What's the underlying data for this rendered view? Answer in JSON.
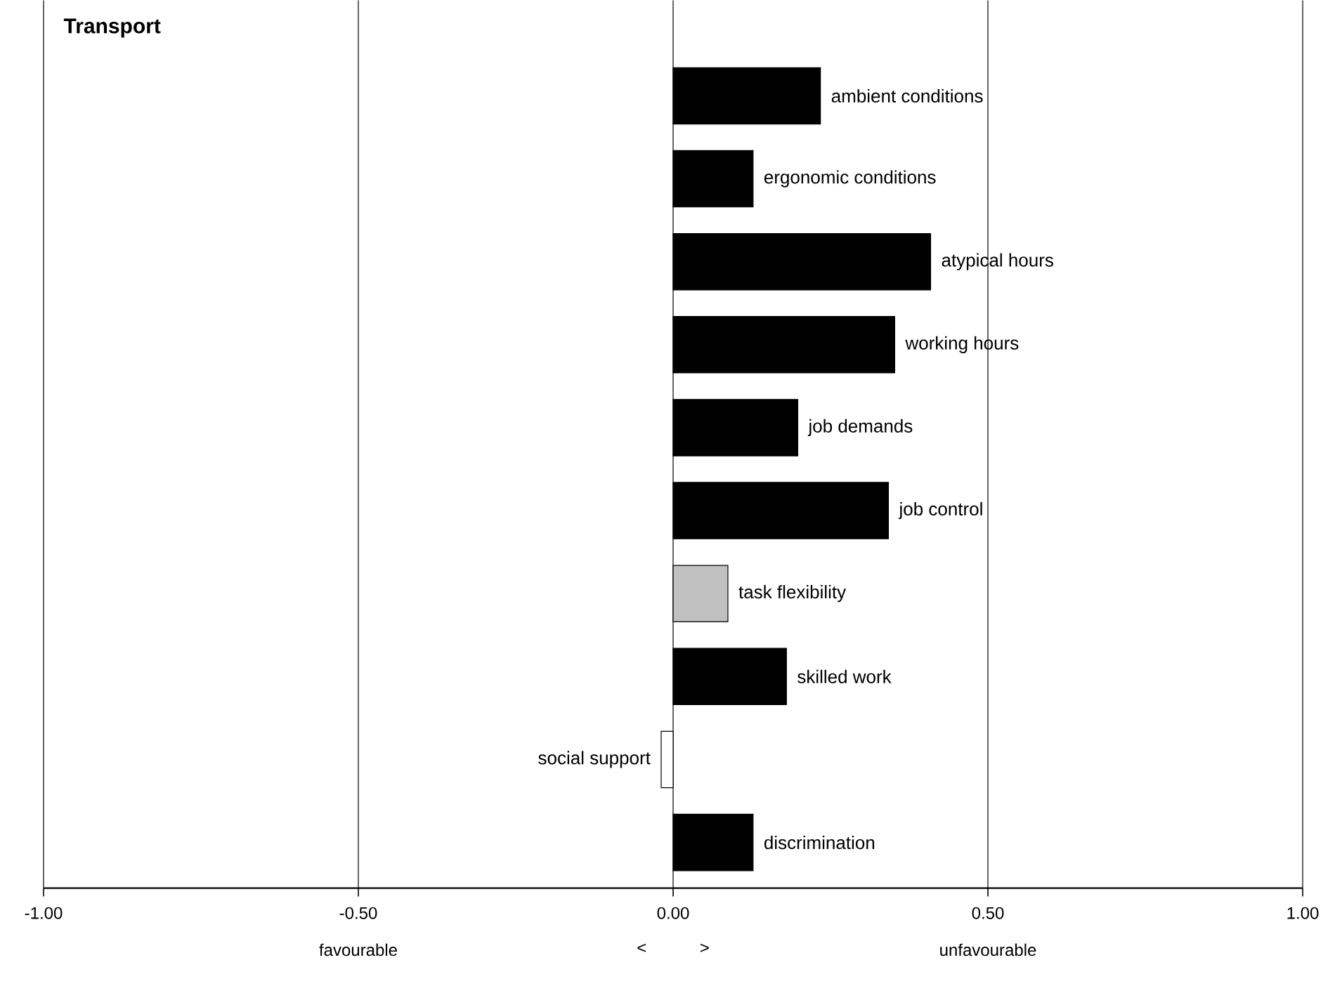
{
  "chart_data": {
    "type": "bar",
    "orientation": "horizontal",
    "title": "Transport",
    "categories": [
      "ambient conditions",
      "ergonomic conditions",
      "atypical hours",
      "working hours",
      "job demands",
      "job control",
      "task flexibility",
      "skilled work",
      "social support",
      "discrimination"
    ],
    "values": [
      0.234,
      0.127,
      0.409,
      0.352,
      0.198,
      0.342,
      0.087,
      0.18,
      -0.019,
      0.127
    ],
    "colors": [
      "#000000",
      "#000000",
      "#000000",
      "#000000",
      "#000000",
      "#000000",
      "#c0c0c0",
      "#000000",
      "#ffffff",
      "#000000"
    ],
    "xlim": [
      -1,
      1
    ],
    "xticks": [
      {
        "value": -1,
        "label": "-1.00"
      },
      {
        "value": -0.5,
        "label": "-0.50"
      },
      {
        "value": 0,
        "label": "0.00"
      },
      {
        "value": 0.5,
        "label": "0.50"
      },
      {
        "value": 1,
        "label": "1.00"
      }
    ],
    "grid": "x",
    "annotations": [
      "favourable",
      "<",
      ">",
      "unfavourable"
    ]
  }
}
